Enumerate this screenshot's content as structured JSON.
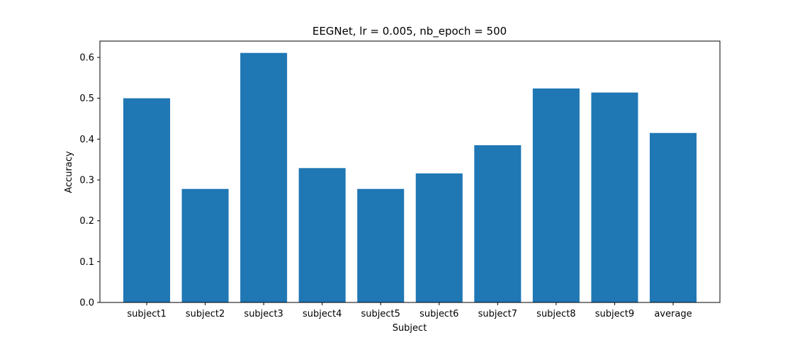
{
  "chart_data": {
    "type": "bar",
    "title": "EEGNet, lr = 0.005, nb_epoch = 500",
    "xlabel": "Subject",
    "ylabel": "Accuracy",
    "categories": [
      "subject1",
      "subject2",
      "subject3",
      "subject4",
      "subject5",
      "subject6",
      "subject7",
      "subject8",
      "subject9",
      "average"
    ],
    "values": [
      0.5,
      0.278,
      0.611,
      0.329,
      0.278,
      0.316,
      0.385,
      0.524,
      0.514,
      0.415
    ],
    "ylim": [
      0,
      0.64
    ],
    "yticks": [
      0.0,
      0.1,
      0.2,
      0.3,
      0.4,
      0.5,
      0.6
    ],
    "ytick_labels": [
      "0.0",
      "0.1",
      "0.2",
      "0.3",
      "0.4",
      "0.5",
      "0.6"
    ],
    "bar_color": "#1f77b4",
    "grid": false,
    "legend": "none"
  }
}
